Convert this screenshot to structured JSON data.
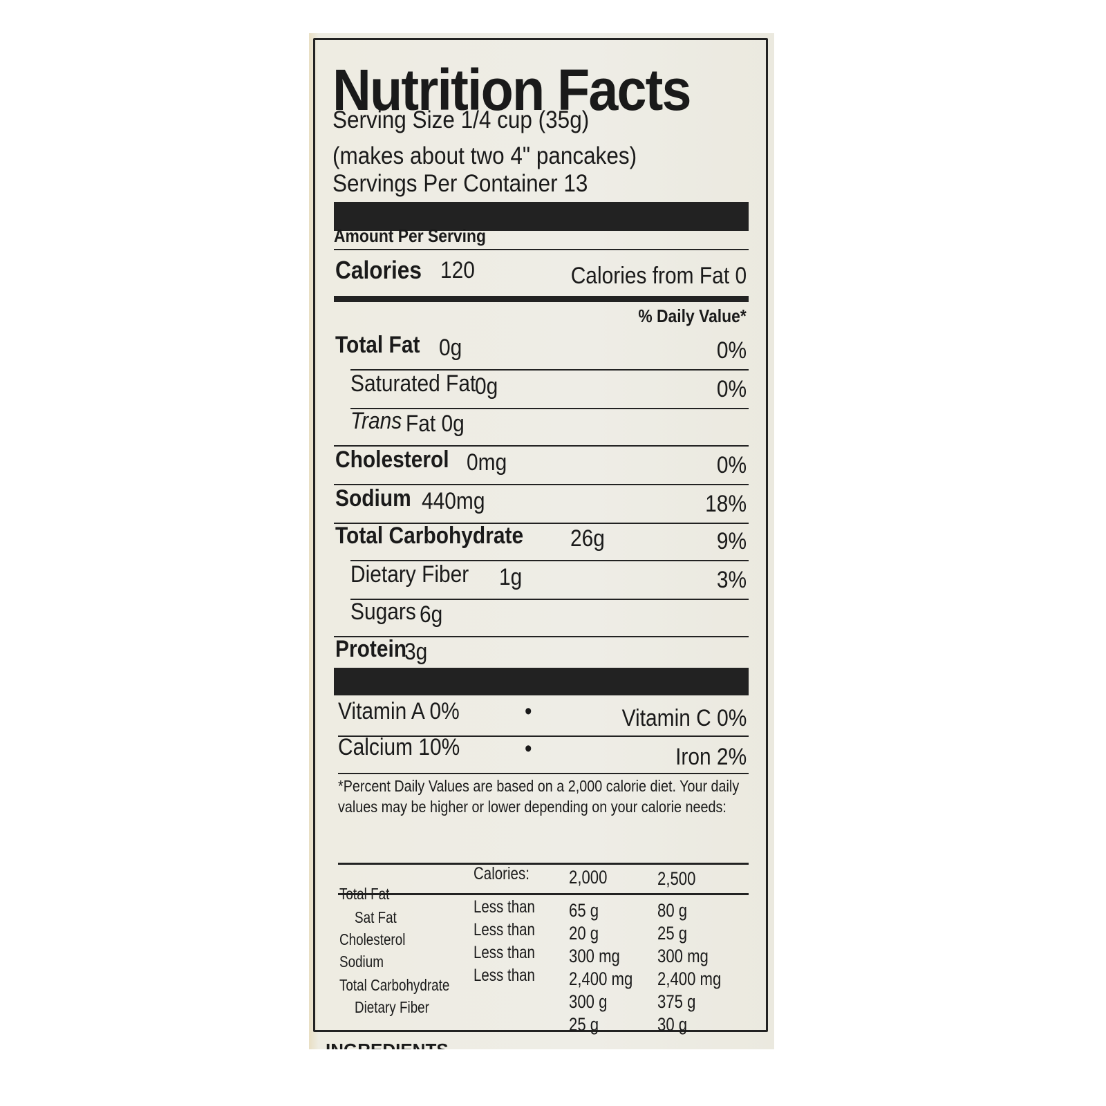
{
  "title": "Nutrition Facts",
  "serving_size": "Serving Size 1/4 cup (35g)",
  "serving_note": "(makes about two 4\" pancakes)",
  "servings_per_container": "Servings Per Container 13",
  "amount_per_serving": "Amount Per Serving",
  "calories_label": "Calories",
  "calories_value": "120",
  "calories_from_fat": "Calories from Fat 0",
  "daily_value_header": "% Daily Value*",
  "nutrients": [
    {
      "label": "Total Fat",
      "amount": "0g",
      "dv": "0%"
    },
    {
      "label": "Saturated Fat",
      "amount": "0g",
      "dv": "0%"
    },
    {
      "label": "Trans",
      "suffix": "Fat 0g",
      "dv": ""
    },
    {
      "label": "Cholesterol",
      "amount": "0mg",
      "dv": "0%"
    },
    {
      "label": "Sodium",
      "amount": "440mg",
      "dv": "18%"
    },
    {
      "label": "Total Carbohydrate",
      "amount": "26g",
      "dv": "9%"
    },
    {
      "label": "Dietary Fiber",
      "amount": "1g",
      "dv": "3%"
    },
    {
      "label": "Sugars",
      "amount": "6g",
      "dv": ""
    },
    {
      "label": "Protein",
      "amount": "3g",
      "dv": ""
    }
  ],
  "vitamins": [
    {
      "left": "Vitamin A 0%",
      "right": "Vitamin C 0%"
    },
    {
      "left": "Calcium 10%",
      "right": "Iron 2%"
    }
  ],
  "bullet": "•",
  "footnote": "*Percent Daily Values are based on a 2,000 calorie diet. Your daily values may be higher or lower depending on your calorie needs:",
  "reference_table": {
    "header": [
      "Calories:",
      "2,000",
      "2,500"
    ],
    "labels": [
      "Total Fat",
      "Sat Fat",
      "Cholesterol",
      "Sodium",
      "Total Carbohydrate",
      "Dietary Fiber"
    ],
    "qualifiers": [
      "Less than",
      "Less than",
      "Less than",
      "Less than"
    ],
    "col_2000": [
      "65 g",
      "20 g",
      "300 mg",
      "2,400 mg",
      "300 g",
      "25 g"
    ],
    "col_2500": [
      "80 g",
      "25 g",
      "300 mg",
      "2,400 mg",
      "375 g",
      "30 g"
    ]
  },
  "ingredients_cut": "INGREDIENTS"
}
